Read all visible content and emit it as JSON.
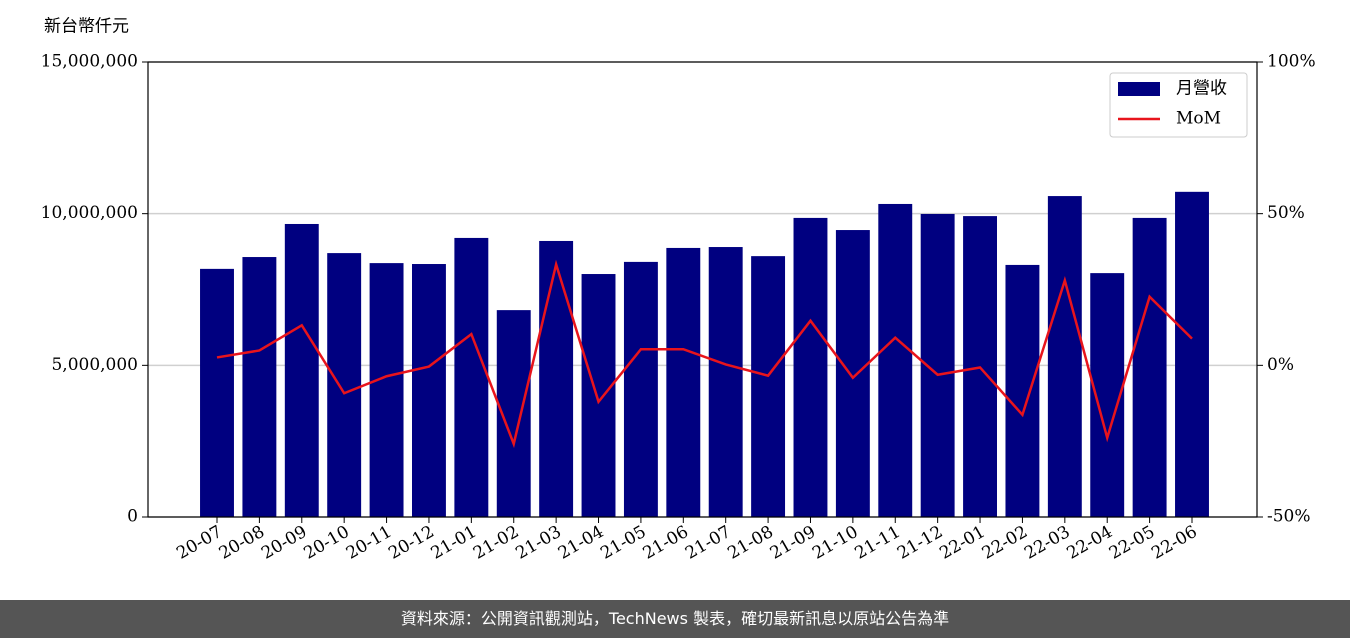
{
  "chart_data": {
    "type": "bar-line",
    "y_axis_label": "新台幣仟元",
    "categories": [
      "20-07",
      "20-08",
      "20-09",
      "20-10",
      "20-11",
      "20-12",
      "21-01",
      "21-02",
      "21-03",
      "21-04",
      "21-05",
      "21-06",
      "21-07",
      "21-08",
      "21-09",
      "21-10",
      "21-11",
      "21-12",
      "22-01",
      "22-02",
      "22-03",
      "22-04",
      "22-05",
      "22-06"
    ],
    "series": [
      {
        "name": "月營收",
        "type": "bar",
        "color": "#000080",
        "values": [
          8180000,
          8570000,
          9660000,
          8700000,
          8370000,
          8340000,
          9200000,
          6820000,
          9100000,
          8010000,
          8410000,
          8870000,
          8900000,
          8600000,
          9860000,
          9460000,
          10320000,
          9990000,
          9920000,
          8310000,
          10580000,
          8040000,
          9860000,
          10720000
        ]
      },
      {
        "name": "MoM",
        "type": "line",
        "axis": "y2",
        "color": "#e8141c",
        "values": [
          2.6,
          4.9,
          13.2,
          -9.2,
          -3.6,
          -0.4,
          10.3,
          -25.9,
          33.3,
          -12.0,
          5.3,
          5.3,
          0.3,
          -3.4,
          14.7,
          -4.1,
          9.1,
          -3.1,
          -0.7,
          -16.3,
          28.0,
          -23.9,
          22.6,
          8.8
        ]
      }
    ],
    "ylim": [
      0,
      15000000
    ],
    "yticks": [
      {
        "value": 0,
        "label": "0"
      },
      {
        "value": 5000000,
        "label": "5,000,000"
      },
      {
        "value": 10000000,
        "label": "10,000,000"
      },
      {
        "value": 15000000,
        "label": "15,000,000"
      }
    ],
    "y2lim": [
      -50,
      100
    ],
    "y2ticks": [
      {
        "value": -50,
        "label": "-50%"
      },
      {
        "value": 0,
        "label": "0%"
      },
      {
        "value": 50,
        "label": "50%"
      },
      {
        "value": 100,
        "label": "100%"
      }
    ],
    "grid": true,
    "legend": "upper right"
  },
  "footer": "資料來源：公開資訊觀測站，TechNews 製表，確切最新訊息以原站公告為準"
}
